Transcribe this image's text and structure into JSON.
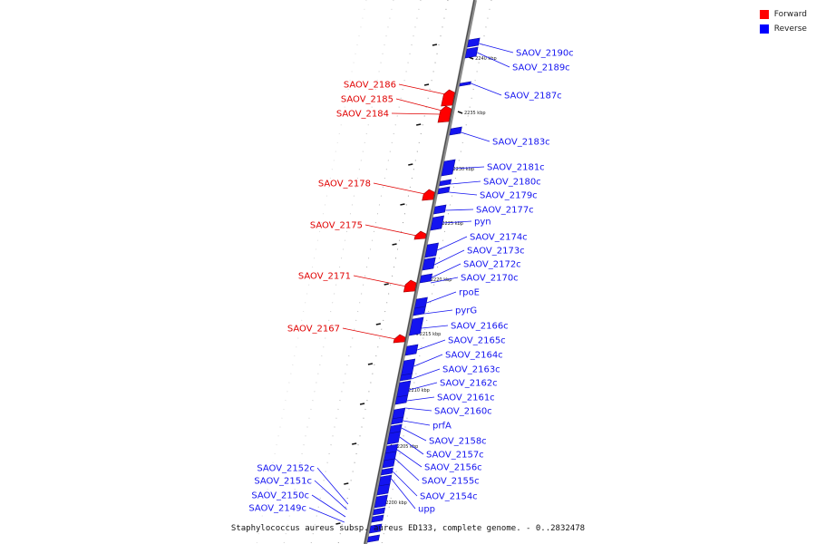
{
  "legend": {
    "items": [
      {
        "label": "Forward",
        "color": "#ff0000"
      },
      {
        "label": "Reverse",
        "color": "#0000ff"
      }
    ]
  },
  "caption": "Staphylococcus aureus subsp. aureus ED133, complete genome. - 0..2832478",
  "colors": {
    "forward": "#ff0000",
    "reverse": "#1414f0",
    "axis": "#777777"
  },
  "ticks": [
    {
      "label": "2240 kbp",
      "kbp": 2240
    },
    {
      "label": "2235 kbp",
      "kbp": 2235
    },
    {
      "label": "2230 kbp",
      "kbp": 2230
    },
    {
      "label": "2225 kbp",
      "kbp": 2225
    },
    {
      "label": "2220 kbp",
      "kbp": 2220
    },
    {
      "label": "2215 kbp",
      "kbp": 2215
    },
    {
      "label": "2210 kbp",
      "kbp": 2210
    },
    {
      "label": "2205 kbp",
      "kbp": 2205
    },
    {
      "label": "2200 kbp",
      "kbp": 2200
    }
  ],
  "genes_reverse": [
    "SAOV_2190c",
    "SAOV_2189c",
    "SAOV_2187c",
    "SAOV_2183c",
    "SAOV_2181c",
    "SAOV_2180c",
    "SAOV_2179c",
    "SAOV_2177c",
    "pyn",
    "SAOV_2174c",
    "SAOV_2173c",
    "SAOV_2172c",
    "SAOV_2170c",
    "rpoE",
    "pyrG",
    "SAOV_2166c",
    "SAOV_2165c",
    "SAOV_2164c",
    "SAOV_2163c",
    "SAOV_2162c",
    "SAOV_2161c",
    "SAOV_2160c",
    "prfA",
    "SAOV_2158c",
    "SAOV_2157c",
    "SAOV_2156c",
    "SAOV_2155c",
    "SAOV_2154c",
    "upp"
  ],
  "genes_forward": [
    "SAOV_2186",
    "SAOV_2185",
    "SAOV_2184",
    "SAOV_2178",
    "SAOV_2175",
    "SAOV_2171",
    "SAOV_2167"
  ],
  "genes_left_reverse": [
    "SAOV_2152c",
    "SAOV_2151c",
    "SAOV_2150c",
    "SAOV_2149c"
  ]
}
